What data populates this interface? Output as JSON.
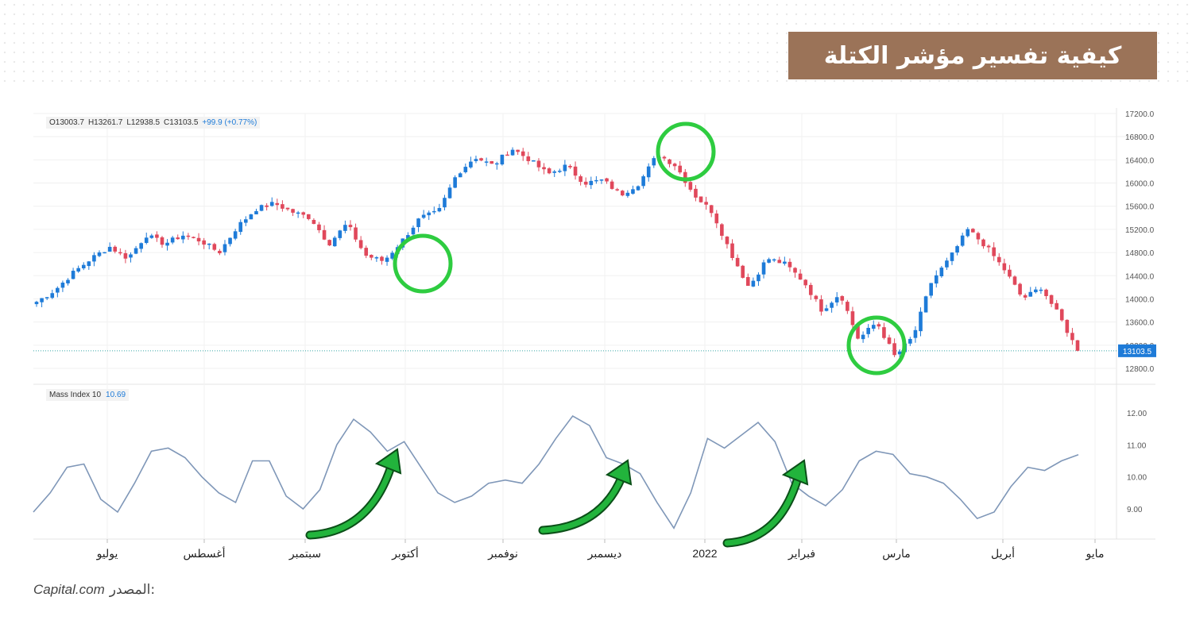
{
  "header": {
    "title": "كيفية تفسير مؤشر الكتلة"
  },
  "ohlc": {
    "open": "O13003.7",
    "high": "H13261.7",
    "low": "L12938.5",
    "close": "C13103.5",
    "change": "+99.9 (+0.77%)"
  },
  "indicator": {
    "name": "Mass Index 10",
    "value": "10.69"
  },
  "source": {
    "label": "المصدر:",
    "brand": "Capital.com"
  },
  "colors": {
    "up": "#1e7bd8",
    "down": "#e0485b",
    "mass": "#7f97b8",
    "highlight": "#2ecc40",
    "arrow": "#22b43c",
    "title_bg": "#9b7358"
  },
  "chart_data": [
    {
      "type": "candlestick",
      "title": "",
      "y_ticks": [
        "17200.0",
        "16800.0",
        "16400.0",
        "16000.0",
        "15600.0",
        "15200.0",
        "14800.0",
        "14400.0",
        "14000.0",
        "13600.0",
        "13200.0",
        "12800.0"
      ],
      "ylim": [
        12700,
        17300
      ],
      "last_price_label": "13103.5",
      "last_price": 13103.5,
      "x_tick_labels": [
        "يوليو",
        "أغسطس",
        "سبتمبر",
        "أكتوبر",
        "نوفمبر",
        "ديسمبر",
        "2022",
        "فبراير",
        "مارس",
        "أبريل",
        "مايو"
      ],
      "close_path_anchors": [
        13950,
        14150,
        14450,
        14700,
        14900,
        14700,
        15100,
        14950,
        15100,
        15000,
        14800,
        15250,
        15550,
        15650,
        15500,
        15400,
        14950,
        15300,
        14750,
        14650,
        15000,
        15400,
        15500,
        16150,
        16450,
        16300,
        16600,
        16400,
        16150,
        16300,
        16000,
        16050,
        15800,
        16000,
        16500,
        16300,
        15800,
        15500,
        14800,
        14200,
        14700,
        14600,
        14300,
        13800,
        14100,
        13300,
        13600,
        13000,
        13350,
        14300,
        14700,
        15200,
        14900,
        14500,
        14000,
        14200,
        13700,
        13100
      ],
      "highlights": [
        "October low",
        "December high",
        "March low"
      ]
    },
    {
      "type": "line",
      "series": [
        {
          "name": "Mass Index 10",
          "values": [
            8.9,
            9.5,
            10.3,
            10.4,
            9.3,
            8.9,
            9.8,
            10.8,
            10.9,
            10.6,
            10.0,
            9.5,
            9.2,
            10.5,
            10.5,
            9.4,
            9.0,
            9.6,
            11.0,
            11.8,
            11.4,
            10.8,
            11.1,
            10.3,
            9.5,
            9.2,
            9.4,
            9.8,
            9.9,
            9.8,
            10.4,
            11.2,
            11.9,
            11.6,
            10.6,
            10.4,
            10.1,
            9.2,
            8.4,
            9.5,
            11.2,
            10.9,
            11.3,
            11.7,
            11.1,
            9.8,
            9.4,
            9.1,
            9.6,
            10.5,
            10.8,
            10.7,
            10.1,
            10.0,
            9.8,
            9.3,
            8.7,
            8.9,
            9.7,
            10.3,
            10.2,
            10.5,
            10.69
          ]
        }
      ],
      "y_ticks": [
        "12.00",
        "11.00",
        "10.00",
        "9.00"
      ],
      "ylim": [
        8.2,
        12.4
      ]
    }
  ]
}
